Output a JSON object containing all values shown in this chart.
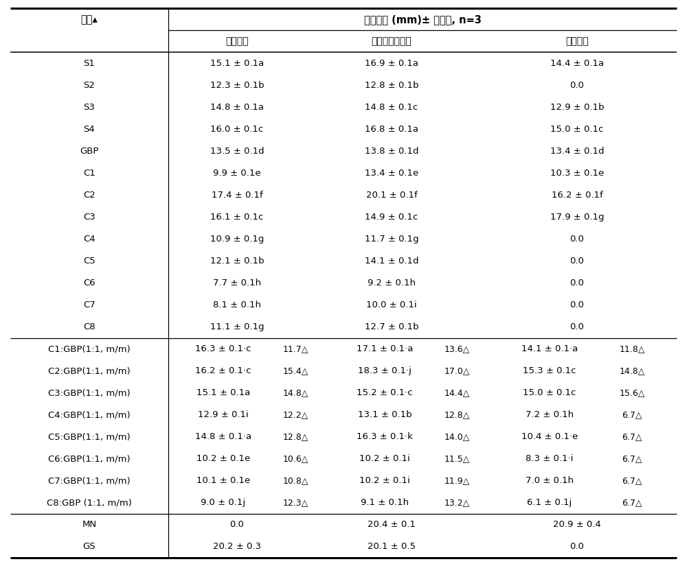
{
  "title_row": "抑菌圈値 (mm)± 标准误, n=3",
  "col_header1": "样品▴",
  "sub_headers": [
    "沙门氏菌",
    "金黄色葡萄球菌",
    "黑曲霍菌"
  ],
  "rows": [
    {
      "sample": "S1",
      "sal": "15.1 ± 0.1a",
      "sal2": "",
      "sta": "16.9 ± 0.1a",
      "sta2": "",
      "asp": "14.4 ± 0.1a",
      "asp2": ""
    },
    {
      "sample": "S2",
      "sal": "12.3 ± 0.1b",
      "sal2": "",
      "sta": "12.8 ± 0.1b",
      "sta2": "",
      "asp": "0.0",
      "asp2": ""
    },
    {
      "sample": "S3",
      "sal": "14.8 ± 0.1a",
      "sal2": "",
      "sta": "14.8 ± 0.1c",
      "sta2": "",
      "asp": "12.9 ± 0.1b",
      "asp2": ""
    },
    {
      "sample": "S4",
      "sal": "16.0 ± 0.1c",
      "sal2": "",
      "sta": "16.8 ± 0.1a",
      "sta2": "",
      "asp": "15.0 ± 0.1c",
      "asp2": ""
    },
    {
      "sample": "GBP",
      "sal": "13.5 ± 0.1d",
      "sal2": "",
      "sta": "13.8 ± 0.1d",
      "sta2": "",
      "asp": "13.4 ± 0.1d",
      "asp2": ""
    },
    {
      "sample": "C1",
      "sal": "9.9 ± 0.1e",
      "sal2": "",
      "sta": "13.4 ± 0.1e",
      "sta2": "",
      "asp": "10.3 ± 0.1e",
      "asp2": ""
    },
    {
      "sample": "C2",
      "sal": "17.4 ± 0.1f",
      "sal2": "",
      "sta": "20.1 ± 0.1f",
      "sta2": "",
      "asp": "16.2 ± 0.1f",
      "asp2": ""
    },
    {
      "sample": "C3",
      "sal": "16.1 ± 0.1c",
      "sal2": "",
      "sta": "14.9 ± 0.1c",
      "sta2": "",
      "asp": "17.9 ± 0.1g",
      "asp2": ""
    },
    {
      "sample": "C4",
      "sal": "10.9 ± 0.1g",
      "sal2": "",
      "sta": "11.7 ± 0.1g",
      "sta2": "",
      "asp": "0.0",
      "asp2": ""
    },
    {
      "sample": "C5",
      "sal": "12.1 ± 0.1b",
      "sal2": "",
      "sta": "14.1 ± 0.1d",
      "sta2": "",
      "asp": "0.0",
      "asp2": ""
    },
    {
      "sample": "C6",
      "sal": "7.7 ± 0.1h",
      "sal2": "",
      "sta": "9.2 ± 0.1h",
      "sta2": "",
      "asp": "0.0",
      "asp2": ""
    },
    {
      "sample": "C7",
      "sal": "8.1 ± 0.1h",
      "sal2": "",
      "sta": "10.0 ± 0.1i",
      "sta2": "",
      "asp": "0.0",
      "asp2": ""
    },
    {
      "sample": "C8",
      "sal": "11.1 ± 0.1g",
      "sal2": "",
      "sta": "12.7 ± 0.1b",
      "sta2": "",
      "asp": "0.0",
      "asp2": ""
    },
    {
      "sample": "C1:GBP(1:1, m/m)",
      "sal": "16.3 ± 0.1*c",
      "sal2": "11.7△",
      "sta": "17.1 ± 0.1*a",
      "sta2": "13.6△",
      "asp": "14.1 ± 0.1*a",
      "asp2": "11.8△"
    },
    {
      "sample": "C2:GBP(1:1, m/m)",
      "sal": "16.2 ± 0.1*c",
      "sal2": "15.4△",
      "sta": "18.3 ± 0.1*j",
      "sta2": "17.0△",
      "asp": "15.3 ± 0.1c",
      "asp2": "14.8△"
    },
    {
      "sample": "C3:GBP(1:1, m/m)",
      "sal": "15.1 ± 0.1a",
      "sal2": "14.8△",
      "sta": "15.2 ± 0.1*c",
      "sta2": "14.4△",
      "asp": "15.0 ± 0.1c",
      "asp2": "15.6△"
    },
    {
      "sample": "C4:GBP(1:1, m/m)",
      "sal": "12.9 ± 0.1i",
      "sal2": "12.2△",
      "sta": "13.1 ± 0.1b",
      "sta2": "12.8△",
      "asp": "7.2 ± 0.1h",
      "asp2": "6.7△"
    },
    {
      "sample": "C5:GBP(1:1, m/m)",
      "sal": "14.8 ± 0.1*a",
      "sal2": "12.8△",
      "sta": "16.3 ± 0.1*k",
      "sta2": "14.0△",
      "asp": "10.4 ± 0.1*e",
      "asp2": "6.7△"
    },
    {
      "sample": "C6:GBP(1:1, m/m)",
      "sal": "10.2 ± 0.1e",
      "sal2": "10.6△",
      "sta": "10.2 ± 0.1i",
      "sta2": "11.5△",
      "asp": "8.3 ± 0.1*i",
      "asp2": "6.7△"
    },
    {
      "sample": "C7:GBP(1:1, m/m)",
      "sal": "10.1 ± 0.1e",
      "sal2": "10.8△",
      "sta": "10.2 ± 0.1i",
      "sta2": "11.9△",
      "asp": "7.0 ± 0.1h",
      "asp2": "6.7△"
    },
    {
      "sample": "C8:GBP (1:1, m/m)",
      "sal": "9.0 ± 0.1j",
      "sal2": "12.3△",
      "sta": "9.1 ± 0.1h",
      "sta2": "13.2△",
      "asp": "6.1 ± 0.1j",
      "asp2": "6.7△"
    },
    {
      "sample": "MN",
      "sal": "0.0",
      "sal2": "",
      "sta": "20.4 ± 0.1",
      "sta2": "",
      "asp": "20.9 ± 0.4",
      "asp2": ""
    },
    {
      "sample": "GS",
      "sal": "20.2 ± 0.3",
      "sal2": "",
      "sta": "20.1 ± 0.5",
      "sta2": "",
      "asp": "0.0",
      "asp2": ""
    }
  ],
  "figsize": [
    10.0,
    8.25
  ],
  "dpi": 100
}
